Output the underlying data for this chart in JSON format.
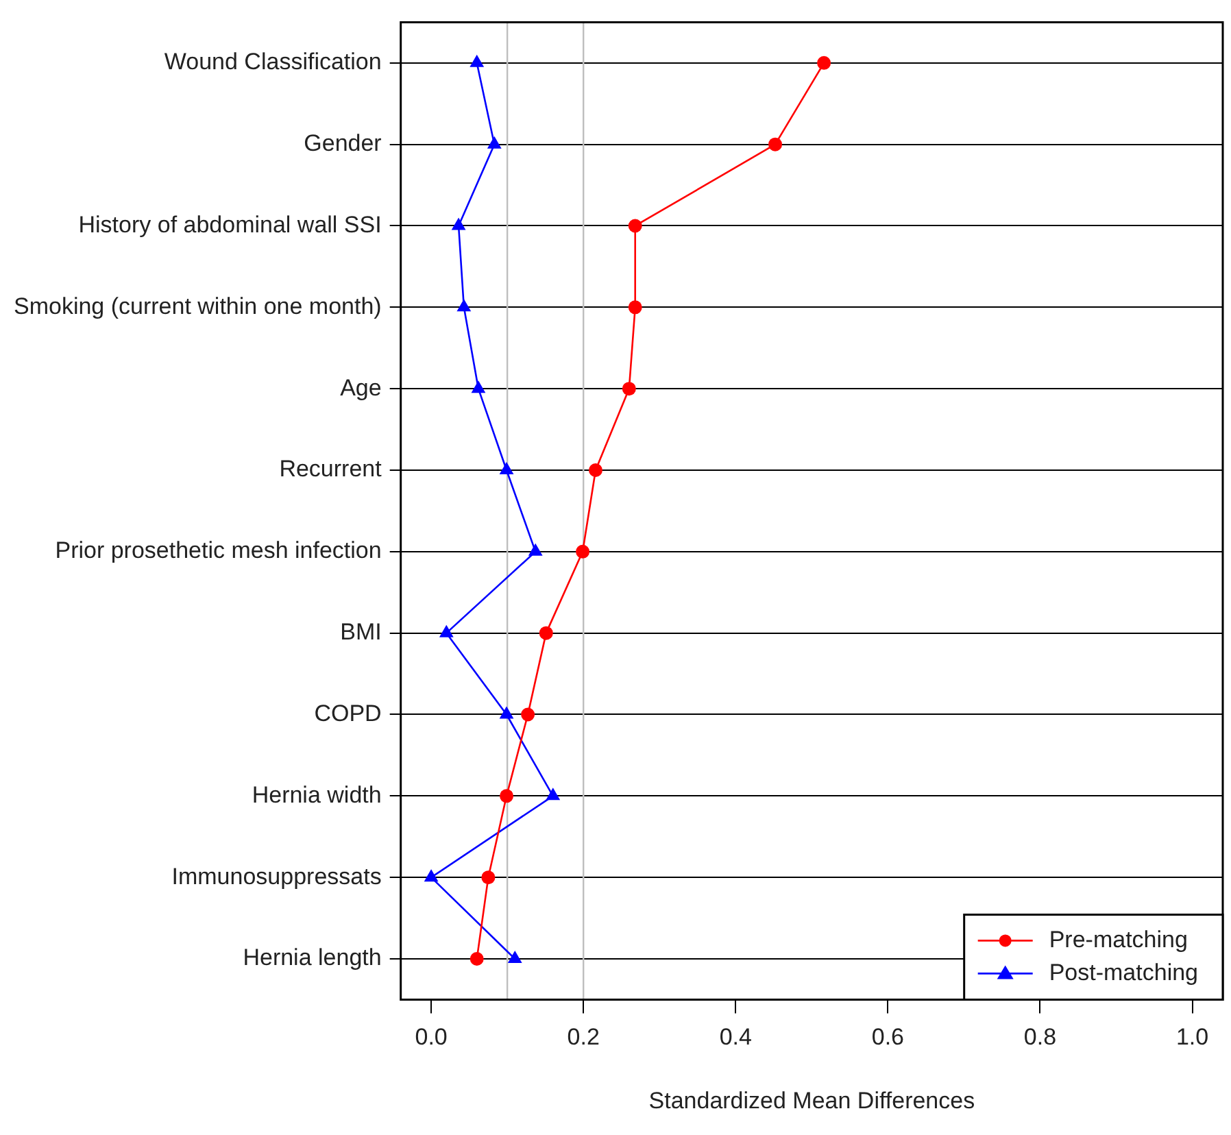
{
  "chart_data": {
    "type": "line",
    "orientation": "horizontal",
    "xlabel": "Standardized Mean Differences",
    "categories": [
      "Wound Classification",
      "Gender",
      "History of abdominal wall SSI",
      "Smoking (current within one month)",
      "Age",
      "Recurrent",
      "Prior prosethetic mesh infection",
      "BMI",
      "COPD",
      "Hernia width",
      "Immunosuppressats",
      "Hernia length"
    ],
    "series": [
      {
        "name": "Pre-matching",
        "color": "#ff0000",
        "marker": "circle",
        "values": [
          0.516,
          0.452,
          0.268,
          0.268,
          0.26,
          0.216,
          0.199,
          0.151,
          0.127,
          0.099,
          0.075,
          0.06
        ]
      },
      {
        "name": "Post-matching",
        "color": "#0000ff",
        "marker": "triangle",
        "values": [
          0.06,
          0.083,
          0.036,
          0.043,
          0.062,
          0.099,
          0.137,
          0.02,
          0.099,
          0.16,
          0.0,
          0.11
        ]
      }
    ],
    "xlim": [
      -0.04,
      1.04
    ],
    "xticks": [
      {
        "value": 0,
        "label": "0.0"
      },
      {
        "value": 0.2,
        "label": "0.2"
      },
      {
        "value": 0.4,
        "label": "0.4"
      },
      {
        "value": 0.6,
        "label": "0.6"
      },
      {
        "value": 0.8,
        "label": "0.8"
      },
      {
        "value": 1,
        "label": "1.0"
      }
    ],
    "grid": "y",
    "legend": "bottom right",
    "ref_lines": [
      {
        "axis": "x",
        "value": 0.1,
        "color": "#bebebe"
      },
      {
        "axis": "x",
        "value": 0.2,
        "color": "#bebebe"
      }
    ]
  }
}
